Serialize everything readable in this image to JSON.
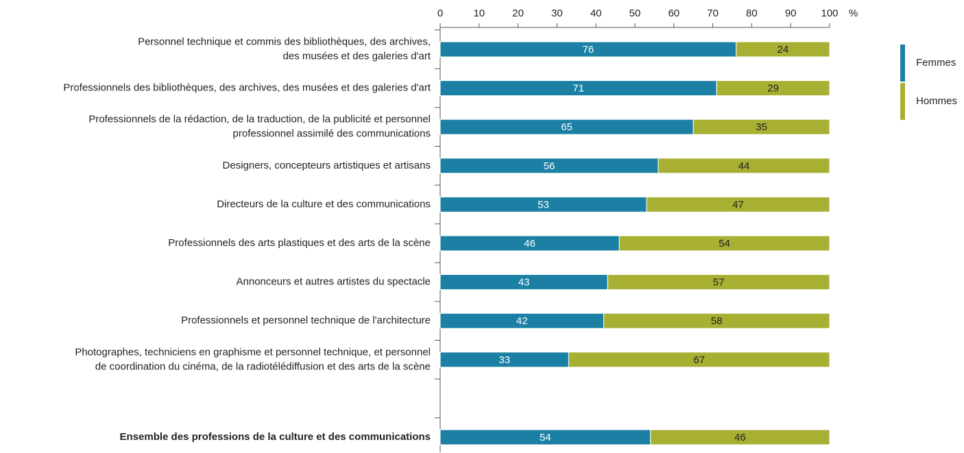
{
  "chart_data": {
    "type": "stacked-barh",
    "xlabel": "%",
    "categories": [
      "Personnel technique et commis des bibliothèques, des archives,\ndes musées et des galeries d'art",
      "Professionnels des bibliothèques, des archives, des musées et des galeries d'art",
      "Professionnels de la rédaction, de la traduction, de la publicité et personnel\nprofessionnel assimilé des communications",
      "Designers, concepteurs artistiques et artisans",
      "Directeurs de la culture et des communications",
      "Professionnels des arts plastiques et des arts de la scène",
      "Annonceurs et autres artistes du spectacle",
      "Professionnels et personnel technique de l'architecture",
      "Photographes, techniciens en graphisme et personnel technique, et personnel\nde coordination du cinéma, de la radiotélédiffusion et des arts de la scène",
      null,
      "Ensemble des professions de la culture et des communications"
    ],
    "series": [
      {
        "name": "Femmes",
        "color": "#1b80a4",
        "values": [
          76,
          71,
          65,
          56,
          53,
          46,
          43,
          42,
          33,
          null,
          54
        ]
      },
      {
        "name": "Hommes",
        "color": "#a8b034",
        "values": [
          24,
          29,
          35,
          44,
          47,
          54,
          57,
          58,
          67,
          null,
          46
        ]
      }
    ],
    "xlim": [
      0,
      100
    ],
    "xticks": [
      0,
      10,
      20,
      30,
      40,
      50,
      60,
      70,
      80,
      90,
      100
    ],
    "legend": "right"
  }
}
